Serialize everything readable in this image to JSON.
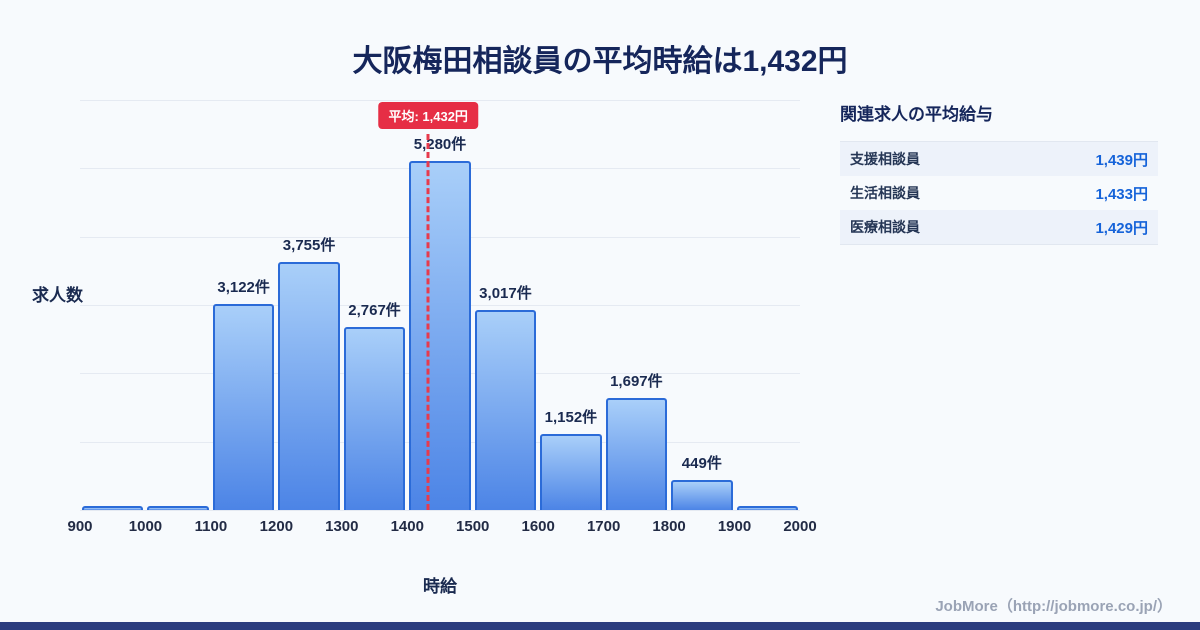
{
  "title": "大阪梅田相談員の平均時給は1,432円",
  "chart_data": {
    "type": "bar",
    "title": "大阪梅田相談員の平均時給は1,432円",
    "xlabel": "時給",
    "ylabel": "求人数",
    "bins": [
      900,
      1000,
      1100,
      1200,
      1300,
      1400,
      1500,
      1600,
      1700,
      1800,
      1900,
      2000
    ],
    "categories": [
      "900-1000",
      "1000-1100",
      "1100-1200",
      "1200-1300",
      "1300-1400",
      "1400-1500",
      "1500-1600",
      "1600-1700",
      "1700-1800",
      "1800-1900",
      "1900-2000"
    ],
    "values": [
      60,
      60,
      3122,
      3755,
      2767,
      5280,
      3017,
      1152,
      1697,
      449,
      60
    ],
    "labels": [
      "",
      "",
      "3,122件",
      "3,755件",
      "2,767件",
      "5,280件",
      "3,017件",
      "1,152件",
      "1,697件",
      "449件",
      ""
    ],
    "x_ticks": [
      "900",
      "1000",
      "1100",
      "1200",
      "1300",
      "1400",
      "1500",
      "1600",
      "1700",
      "1800",
      "1900",
      "2000"
    ],
    "ylim": [
      0,
      6200
    ],
    "grid": true,
    "average": {
      "value": 1432,
      "label": "平均: 1,432円"
    }
  },
  "side_panel": {
    "heading": "関連求人の平均給与",
    "rows": [
      {
        "label": "支援相談員",
        "value": "1,439円"
      },
      {
        "label": "生活相談員",
        "value": "1,433円"
      },
      {
        "label": "医療相談員",
        "value": "1,429円"
      }
    ]
  },
  "footer": {
    "credit": "JobMore（http://jobmore.co.jp/）"
  },
  "colors": {
    "background": "#f7fafd",
    "title_text": "#15265b",
    "bar_fill_top": "#a9cff9",
    "bar_fill_bottom": "#4c84e6",
    "bar_border": "#2b6bd8",
    "average_red": "#e62e45",
    "panel_value_blue": "#1563d9",
    "bottom_strip_blue": "#2b3c7e"
  }
}
